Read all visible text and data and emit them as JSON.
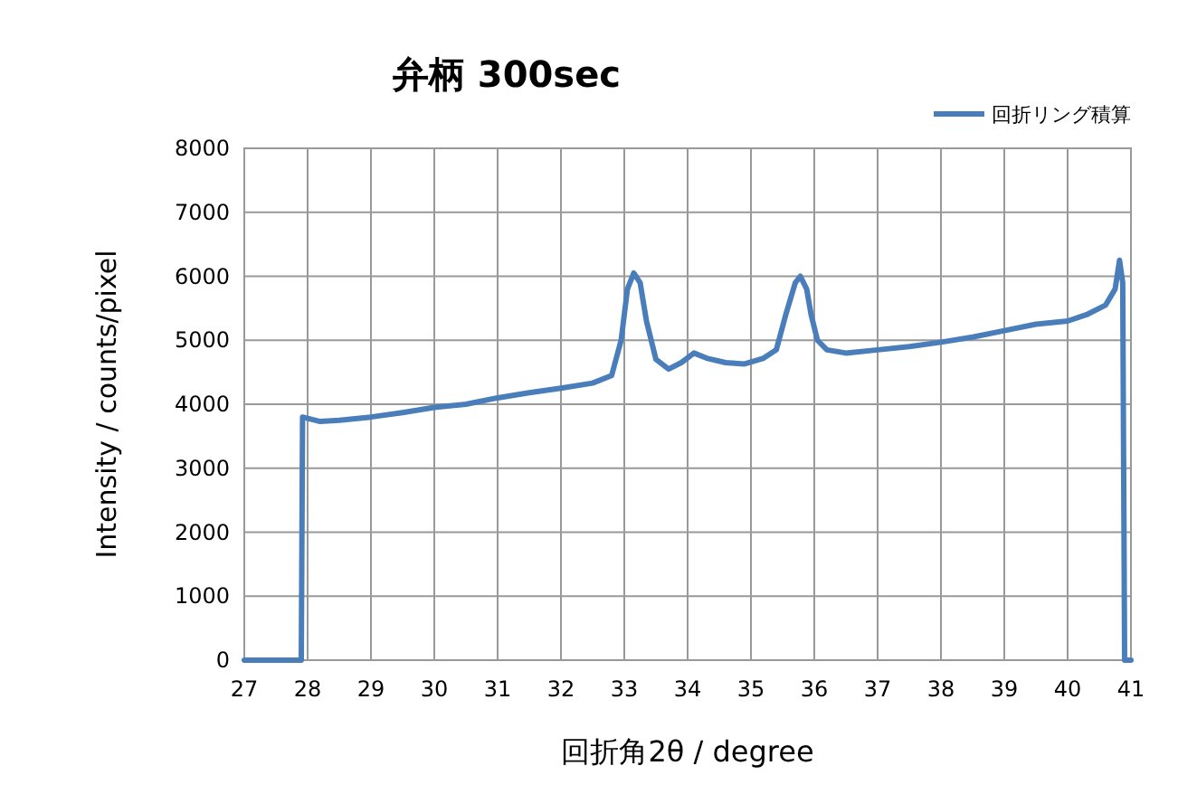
{
  "chart_data": {
    "type": "line",
    "title": "弁柄 300sec",
    "xlabel": "回折角2θ / degree",
    "ylabel": "Intensity / counts/pixel",
    "xlim": [
      27,
      41
    ],
    "xticks": [
      27,
      28,
      29,
      30,
      31,
      32,
      33,
      34,
      35,
      36,
      37,
      38,
      39,
      40,
      41
    ],
    "ylim": [
      0,
      8000
    ],
    "yticks": [
      0,
      1000,
      2000,
      3000,
      4000,
      5000,
      6000,
      7000,
      8000
    ],
    "grid": true,
    "legend": "top right",
    "marker": "none",
    "line_style": "solid",
    "series": [
      {
        "name": "回折リング積算",
        "color": "#4a7ebb",
        "x": [
          27,
          27.9,
          27.92,
          28.0,
          28.2,
          28.5,
          29,
          29.5,
          30,
          30.5,
          31,
          31.5,
          32,
          32.5,
          32.8,
          32.95,
          33.05,
          33.15,
          33.25,
          33.35,
          33.5,
          33.7,
          33.9,
          34.1,
          34.3,
          34.6,
          34.9,
          35.2,
          35.4,
          35.55,
          35.7,
          35.78,
          35.88,
          35.95,
          36.05,
          36.2,
          36.5,
          37,
          37.5,
          38,
          38.5,
          39,
          39.5,
          40,
          40.3,
          40.6,
          40.75,
          40.82,
          40.87,
          40.9,
          41
        ],
        "values": [
          0,
          0,
          3800,
          3780,
          3730,
          3750,
          3800,
          3870,
          3950,
          4000,
          4100,
          4180,
          4250,
          4330,
          4450,
          5000,
          5800,
          6050,
          5900,
          5300,
          4700,
          4550,
          4650,
          4800,
          4720,
          4650,
          4630,
          4720,
          4850,
          5400,
          5900,
          6000,
          5800,
          5400,
          5000,
          4850,
          4800,
          4850,
          4900,
          4970,
          5050,
          5150,
          5250,
          5300,
          5400,
          5550,
          5800,
          6250,
          5900,
          0,
          0
        ]
      }
    ]
  }
}
